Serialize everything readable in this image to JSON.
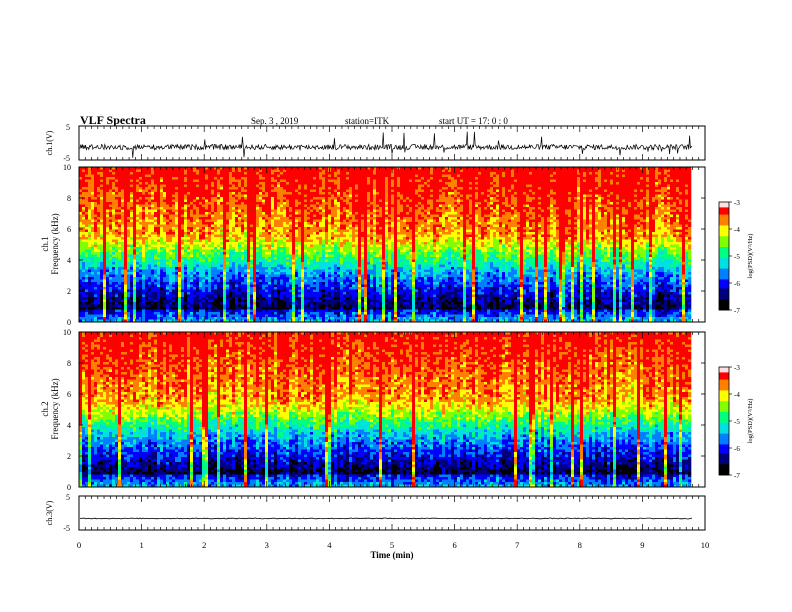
{
  "header": {
    "title": "VLF Spectra",
    "date": "Sep. 3 , 2019",
    "station": "station=ITK",
    "start_ut": "start UT =  17: 0 : 0"
  },
  "chart_data": [
    {
      "type": "line",
      "panel": "ch1-waveform",
      "ylabel": "ch.1(V)",
      "y_ticks": [
        "5",
        "-5"
      ],
      "ylim": [
        -5,
        5
      ],
      "xlim": [
        0,
        10
      ],
      "description_baseline": -1.2,
      "trace_end_min": 9.8
    },
    {
      "type": "heatmap",
      "panel": "ch1-spectrogram",
      "ylabel": "ch.1\nFrequency (kHz)",
      "ylabel_line1": "ch.1",
      "ylabel_line2": "Frequency (kHz)",
      "y_ticks": [
        "0",
        "2",
        "4",
        "6",
        "8",
        "10"
      ],
      "ylim": [
        0,
        10
      ],
      "xlim": [
        0,
        10
      ],
      "data_end_min": 9.8,
      "colorbar": {
        "label": "log(PSD)(V²/Hz)",
        "ticks": [
          "-3",
          "-4",
          "-5",
          "-6",
          "-7"
        ],
        "range": [
          -7,
          -3
        ]
      }
    },
    {
      "type": "heatmap",
      "panel": "ch2-spectrogram",
      "ylabel_line1": "ch.2",
      "ylabel_line2": "Frequency (kHz)",
      "y_ticks": [
        "0",
        "2",
        "4",
        "6",
        "8",
        "10"
      ],
      "ylim": [
        0,
        10
      ],
      "xlim": [
        0,
        10
      ],
      "data_end_min": 9.8,
      "colorbar": {
        "label": "log(PSD)(V²/Hz)",
        "ticks": [
          "-3",
          "-4",
          "-5",
          "-6",
          "-7"
        ],
        "range": [
          -7,
          -3
        ]
      }
    },
    {
      "type": "line",
      "panel": "ch3-waveform",
      "ylabel": "ch.3(V)",
      "y_ticks": [
        "5",
        "-5"
      ],
      "ylim": [
        -5,
        5
      ],
      "xlim": [
        0,
        10
      ],
      "baseline": -1.6,
      "trace_end_min": 9.8
    }
  ],
  "x_axis": {
    "label": "Time (min)",
    "ticks": [
      "0",
      "1",
      "2",
      "3",
      "4",
      "5",
      "6",
      "7",
      "8",
      "9",
      "10"
    ],
    "range": [
      0,
      10
    ]
  },
  "colormap": [
    "#000000",
    "#00007a",
    "#0000ff",
    "#0080ff",
    "#00e0e0",
    "#00ff80",
    "#80ff00",
    "#ffff00",
    "#ff8000",
    "#ff0000",
    "#ffffff"
  ]
}
